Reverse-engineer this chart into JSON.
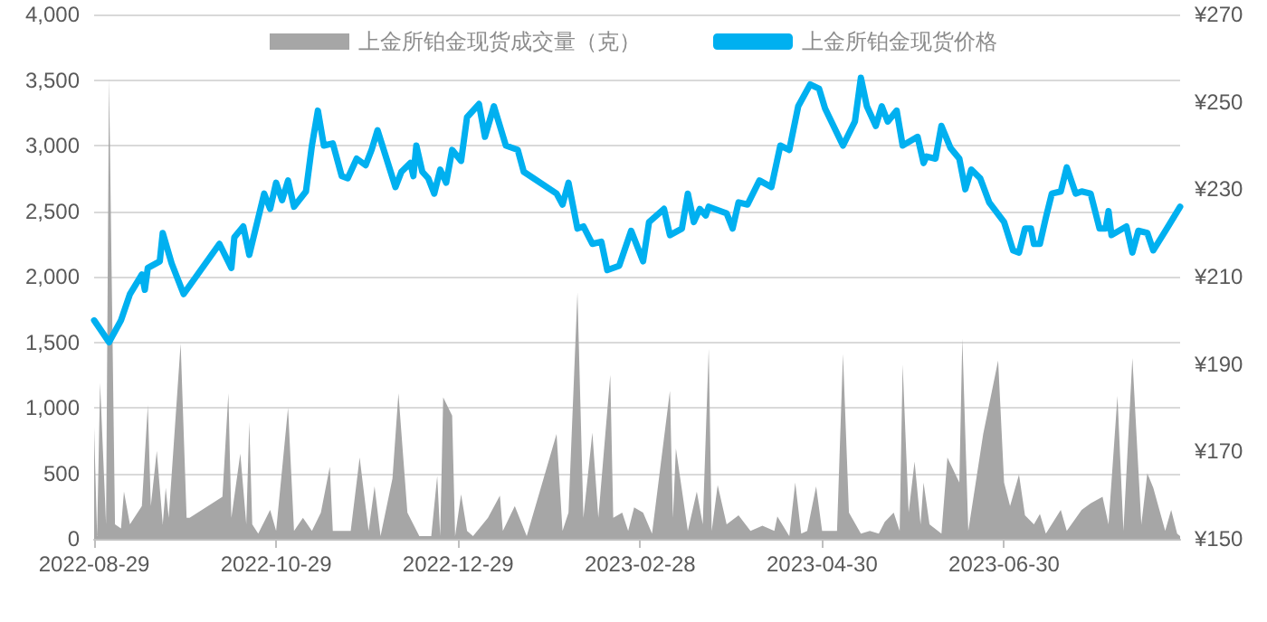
{
  "chart_data": {
    "type": "line",
    "xlim": [
      "2022-08-29",
      "2023-08-28"
    ],
    "xticks": [
      "2022-08-29",
      "2022-10-29",
      "2022-12-29",
      "2023-02-28",
      "2023-04-30",
      "2023-06-30"
    ],
    "ylim": [
      0,
      4000
    ],
    "yticks": [
      0,
      500,
      {
        "value": 1000,
        "label": "1,000"
      },
      {
        "value": 1500,
        "label": "1,500"
      },
      {
        "value": 2000,
        "label": "2,000"
      },
      {
        "value": 2500,
        "label": "2,500"
      },
      {
        "value": 3000,
        "label": "3,000"
      },
      {
        "value": 3500,
        "label": "3,500"
      },
      {
        "value": 4000,
        "label": "4,000"
      }
    ],
    "y2lim": [
      150,
      270
    ],
    "y2ticks": [
      {
        "value": 150,
        "label": "¥150"
      },
      {
        "value": 170,
        "label": "¥170"
      },
      {
        "value": 190,
        "label": "¥190"
      },
      {
        "value": 210,
        "label": "¥210"
      },
      {
        "value": 230,
        "label": "¥230"
      },
      {
        "value": 250,
        "label": "¥250"
      },
      {
        "value": 270,
        "label": "¥270"
      }
    ],
    "grid": "y",
    "legend": "top",
    "marker": "none",
    "line_style": "solid",
    "series": [
      {
        "name": "上金所铂金现货成交量（克）",
        "type": "area",
        "color": "#a6a6a6",
        "x": [
          "2022-08-29",
          "2022-08-30",
          "2022-08-31",
          "2022-09-02",
          "2022-09-03",
          "2022-09-05",
          "2022-09-07",
          "2022-09-08",
          "2022-09-10",
          "2022-09-14",
          "2022-09-16",
          "2022-09-17",
          "2022-09-19",
          "2022-09-21",
          "2022-09-22",
          "2022-09-23",
          "2022-09-27",
          "2022-09-29",
          "2022-09-30",
          "2022-10-11",
          "2022-10-13",
          "2022-10-14",
          "2022-10-17",
          "2022-10-19",
          "2022-10-20",
          "2022-10-21",
          "2022-10-23",
          "2022-10-27",
          "2022-10-29",
          "2022-11-02",
          "2022-11-04",
          "2022-11-07",
          "2022-11-10",
          "2022-11-13",
          "2022-11-16",
          "2022-11-17",
          "2022-11-23",
          "2022-11-26",
          "2022-11-29",
          "2022-12-01",
          "2022-12-03",
          "2022-12-07",
          "2022-12-09",
          "2022-12-12",
          "2022-12-16",
          "2022-12-20",
          "2022-12-22",
          "2022-12-23",
          "2022-12-24",
          "2022-12-27",
          "2022-12-28",
          "2022-12-30",
          "2023-01-01",
          "2023-01-03",
          "2023-01-08",
          "2023-01-12",
          "2023-01-13",
          "2023-01-17",
          "2023-01-21",
          "2023-01-31",
          "2023-02-02",
          "2023-02-04",
          "2023-02-07",
          "2023-02-09",
          "2023-02-12",
          "2023-02-14",
          "2023-02-18",
          "2023-02-19",
          "2023-02-22",
          "2023-02-24",
          "2023-02-26",
          "2023-03-01",
          "2023-03-04",
          "2023-03-10",
          "2023-03-11",
          "2023-03-12",
          "2023-03-16",
          "2023-03-19",
          "2023-03-21",
          "2023-03-23",
          "2023-03-24",
          "2023-03-26",
          "2023-03-29",
          "2023-04-02",
          "2023-04-06",
          "2023-04-10",
          "2023-04-14",
          "2023-04-15",
          "2023-04-19",
          "2023-04-21",
          "2023-04-23",
          "2023-04-25",
          "2023-04-28",
          "2023-04-30",
          "2023-05-05",
          "2023-05-07",
          "2023-05-09",
          "2023-05-13",
          "2023-05-16",
          "2023-05-19",
          "2023-05-21",
          "2023-05-24",
          "2023-05-26",
          "2023-05-27",
          "2023-05-29",
          "2023-05-31",
          "2023-06-02",
          "2023-06-03",
          "2023-06-05",
          "2023-06-09",
          "2023-06-11",
          "2023-06-15",
          "2023-06-16",
          "2023-06-18",
          "2023-06-23",
          "2023-06-28",
          "2023-06-30",
          "2023-07-02",
          "2023-07-05",
          "2023-07-07",
          "2023-07-10",
          "2023-07-12",
          "2023-07-14",
          "2023-07-19",
          "2023-07-21",
          "2023-07-26",
          "2023-07-29",
          "2023-08-02",
          "2023-08-04",
          "2023-08-07",
          "2023-08-09",
          "2023-08-12",
          "2023-08-15",
          "2023-08-17",
          "2023-08-19",
          "2023-08-23",
          "2023-08-25",
          "2023-08-27",
          "2023-08-28"
        ],
        "values": [
          850,
          20,
          1190,
          110,
          3520,
          110,
          80,
          360,
          110,
          250,
          1020,
          250,
          670,
          110,
          390,
          160,
          1490,
          160,
          160,
          320,
          1110,
          160,
          650,
          110,
          890,
          110,
          40,
          220,
          60,
          1000,
          60,
          160,
          60,
          200,
          550,
          60,
          60,
          620,
          60,
          400,
          20,
          460,
          1110,
          200,
          20,
          20,
          480,
          20,
          1080,
          940,
          20,
          340,
          60,
          20,
          160,
          330,
          60,
          250,
          20,
          800,
          60,
          200,
          1880,
          160,
          810,
          160,
          1250,
          160,
          200,
          60,
          240,
          200,
          40,
          1130,
          160,
          690,
          60,
          360,
          110,
          1450,
          60,
          410,
          110,
          180,
          60,
          100,
          60,
          170,
          20,
          430,
          40,
          60,
          400,
          60,
          60,
          1410,
          200,
          40,
          60,
          40,
          130,
          200,
          60,
          1330,
          200,
          590,
          110,
          430,
          110,
          40,
          620,
          430,
          1530,
          60,
          800,
          1360,
          430,
          250,
          490,
          180,
          110,
          190,
          40,
          220,
          60,
          220,
          270,
          320,
          110,
          1090,
          60,
          1380,
          110,
          500,
          390,
          60,
          220,
          40,
          20
        ]
      },
      {
        "name": "上金所铂金现货价格",
        "axis": "y2",
        "color": "#00b0f0",
        "x": [
          "2022-08-29",
          "2022-09-03",
          "2022-09-07",
          "2022-09-10",
          "2022-09-14",
          "2022-09-15",
          "2022-09-16",
          "2022-09-20",
          "2022-09-21",
          "2022-09-24",
          "2022-09-28",
          "2022-10-10",
          "2022-10-14",
          "2022-10-15",
          "2022-10-18",
          "2022-10-20",
          "2022-10-25",
          "2022-10-27",
          "2022-10-29",
          "2022-10-31",
          "2022-11-02",
          "2022-11-04",
          "2022-11-08",
          "2022-11-10",
          "2022-11-12",
          "2022-11-14",
          "2022-11-17",
          "2022-11-20",
          "2022-11-22",
          "2022-11-25",
          "2022-11-28",
          "2022-11-30",
          "2022-12-02",
          "2022-12-08",
          "2022-12-10",
          "2022-12-13",
          "2022-12-14",
          "2022-12-15",
          "2022-12-17",
          "2022-12-19",
          "2022-12-21",
          "2022-12-23",
          "2022-12-25",
          "2022-12-27",
          "2022-12-30",
          "2023-01-01",
          "2023-01-05",
          "2023-01-07",
          "2023-01-10",
          "2023-01-14",
          "2023-01-18",
          "2023-01-20",
          "2023-01-31",
          "2023-02-02",
          "2023-02-04",
          "2023-02-07",
          "2023-02-09",
          "2023-02-12",
          "2023-02-15",
          "2023-02-17",
          "2023-02-21",
          "2023-02-25",
          "2023-03-01",
          "2023-03-03",
          "2023-03-08",
          "2023-03-10",
          "2023-03-14",
          "2023-03-16",
          "2023-03-18",
          "2023-03-20",
          "2023-03-22",
          "2023-03-23",
          "2023-03-29",
          "2023-03-31",
          "2023-04-02",
          "2023-04-05",
          "2023-04-09",
          "2023-04-13",
          "2023-04-16",
          "2023-04-19",
          "2023-04-22",
          "2023-04-26",
          "2023-04-29",
          "2023-05-01",
          "2023-05-07",
          "2023-05-11",
          "2023-05-13",
          "2023-05-15",
          "2023-05-18",
          "2023-05-20",
          "2023-05-22",
          "2023-05-25",
          "2023-05-27",
          "2023-06-01",
          "2023-06-03",
          "2023-06-04",
          "2023-06-07",
          "2023-06-09",
          "2023-06-12",
          "2023-06-15",
          "2023-06-17",
          "2023-06-19",
          "2023-06-22",
          "2023-06-25",
          "2023-06-30",
          "2023-07-03",
          "2023-07-05",
          "2023-07-07",
          "2023-07-09",
          "2023-07-10",
          "2023-07-12",
          "2023-07-14",
          "2023-07-16",
          "2023-07-19",
          "2023-07-21",
          "2023-07-24",
          "2023-07-26",
          "2023-07-29",
          "2023-08-01",
          "2023-08-03",
          "2023-08-04",
          "2023-08-05",
          "2023-08-10",
          "2023-08-12",
          "2023-08-14",
          "2023-08-17",
          "2023-08-19",
          "2023-08-24",
          "2023-08-28"
        ],
        "values": [
          200,
          195,
          200,
          206,
          210.5,
          207,
          212,
          213.5,
          220,
          213,
          206,
          217.5,
          212,
          219,
          221.5,
          215,
          229,
          225.5,
          231.5,
          227.5,
          232,
          226,
          229.5,
          240,
          248,
          240,
          240.5,
          233,
          232.5,
          237,
          235.5,
          239,
          243.5,
          230.5,
          234,
          236,
          233,
          240,
          234,
          232.5,
          229,
          234.5,
          231.5,
          239,
          236.5,
          246.5,
          249.5,
          242,
          249,
          240,
          239,
          234,
          229,
          226.5,
          231.5,
          221,
          221.5,
          217.5,
          218,
          211.5,
          212.5,
          220.5,
          213.5,
          222.5,
          225.5,
          219.5,
          221,
          229,
          222.5,
          225.5,
          224,
          226,
          224.5,
          221,
          227,
          226.5,
          232,
          230.5,
          240,
          239,
          249,
          254,
          253,
          248.5,
          240,
          245.5,
          255.5,
          249,
          244.5,
          249,
          245.5,
          248,
          240,
          242,
          236,
          237.5,
          237,
          244.5,
          239.5,
          237,
          230,
          234.5,
          232.5,
          227,
          222.5,
          216,
          215.5,
          221,
          221,
          217.5,
          217.5,
          223.5,
          229,
          229.5,
          235,
          229,
          229.5,
          229,
          221,
          221,
          225,
          219.5,
          221.5,
          215.5,
          220.5,
          220,
          216,
          221.5,
          226
        ]
      }
    ]
  }
}
